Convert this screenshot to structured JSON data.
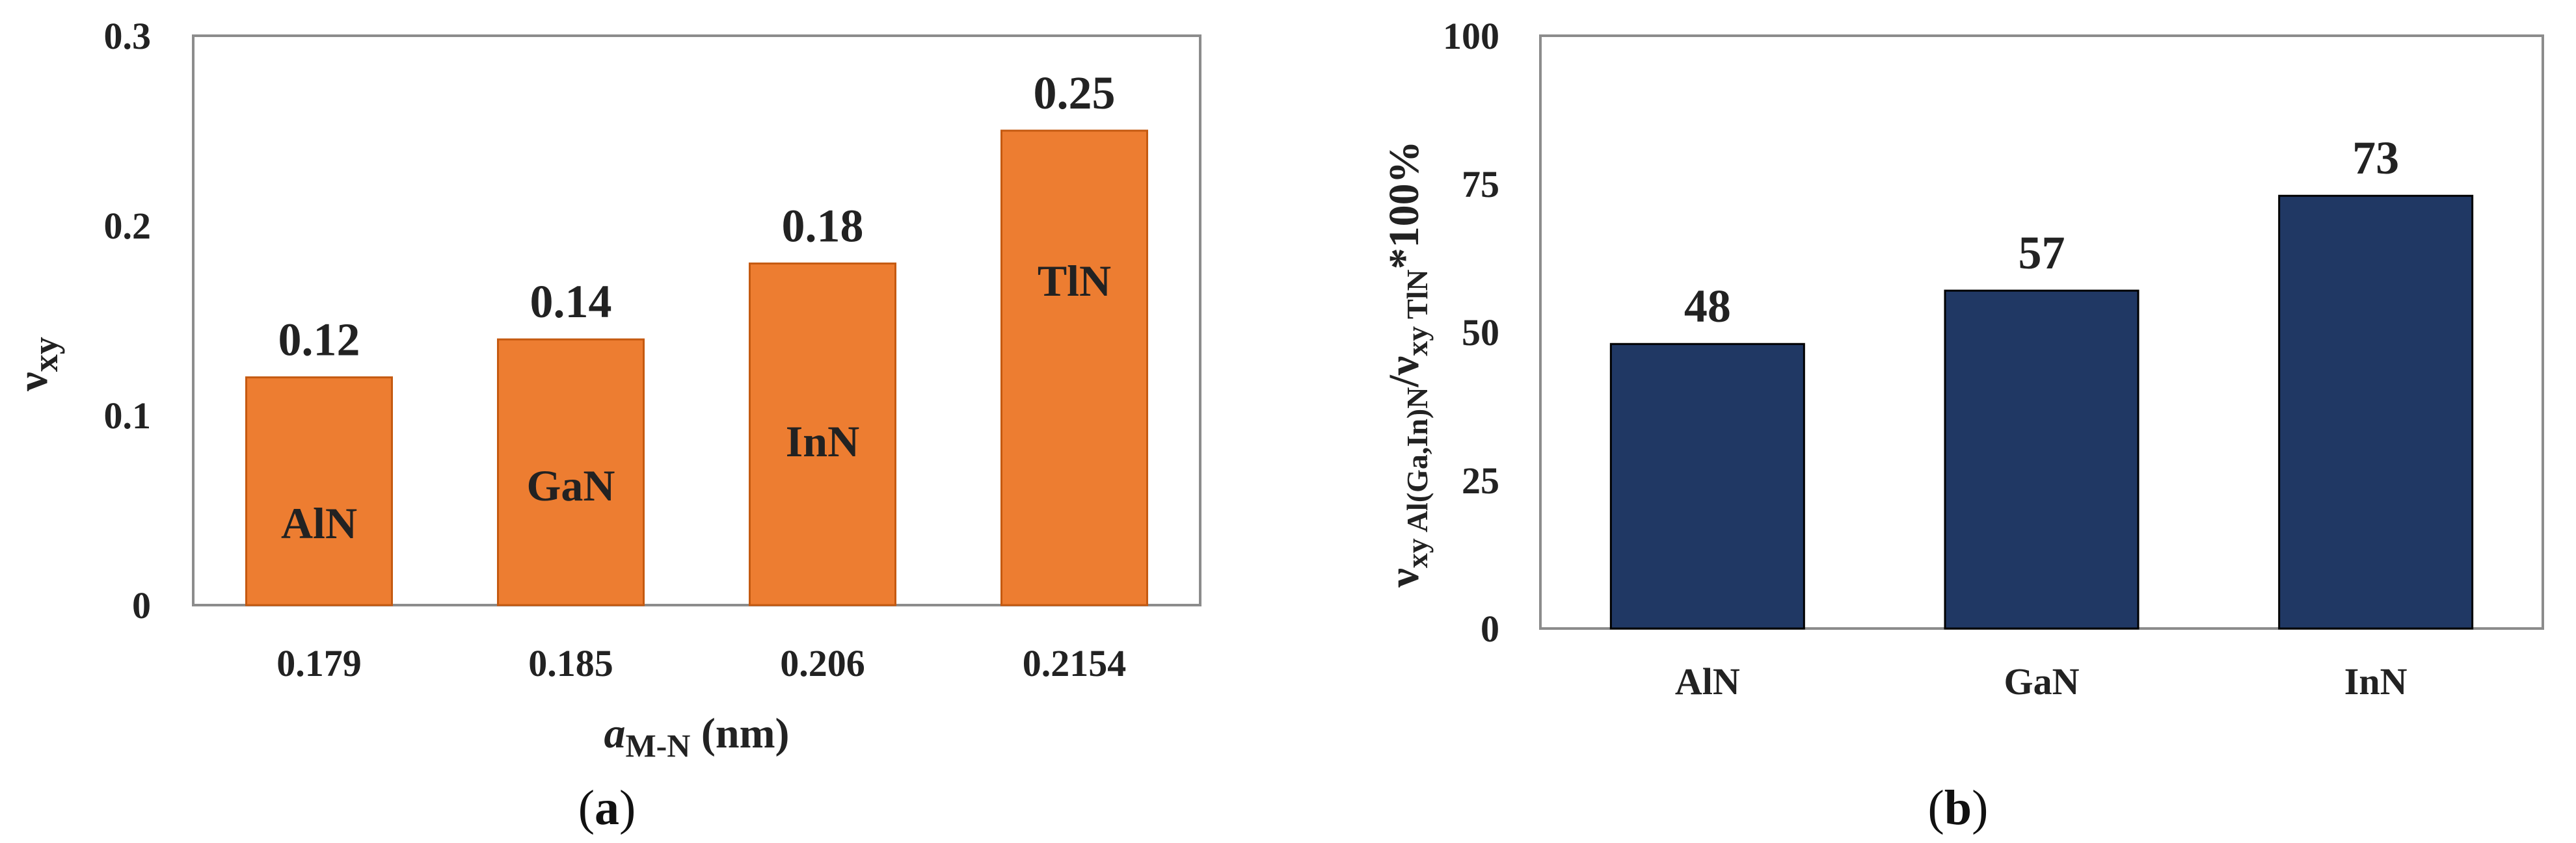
{
  "chart_data": [
    {
      "type": "bar",
      "panel_label": "(a)",
      "panel_letter": "a",
      "categories": [
        "0.179",
        "0.185",
        "0.206",
        "0.2154"
      ],
      "bar_labels": [
        "AlN",
        "GaN",
        "InN",
        "TlN"
      ],
      "values": [
        0.12,
        0.14,
        0.18,
        0.25
      ],
      "value_labels": [
        "0.12",
        "0.14",
        "0.18",
        "0.25"
      ],
      "xlabel_italic": "a",
      "xlabel_sub": "M-N",
      "xlabel_unit": " (nm)",
      "ylabel_main": "ν",
      "ylabel_sub": "xy",
      "ylim": [
        0,
        0.3
      ],
      "yticks": [
        "0",
        "0.1",
        "0.2",
        "0.3"
      ],
      "ytick_values": [
        0,
        0.1,
        0.2,
        0.3
      ],
      "bar_color": "#ED7D31",
      "bar_edge": "#C55A11"
    },
    {
      "type": "bar",
      "panel_label": "(b)",
      "panel_letter": "b",
      "categories": [
        "AlN",
        "GaN",
        "InN"
      ],
      "values": [
        48,
        57,
        73
      ],
      "value_labels": [
        "48",
        "57",
        "73"
      ],
      "ylabel_parts": [
        "ν",
        "xy Al(Ga,In)N",
        "/ν",
        "xy TlN",
        "*100%"
      ],
      "ylim": [
        0,
        100
      ],
      "yticks": [
        "0",
        "25",
        "50",
        "75",
        "100"
      ],
      "ytick_values": [
        0,
        25,
        50,
        75,
        100
      ],
      "bar_color": "#203864",
      "bar_edge": "#000000"
    }
  ]
}
